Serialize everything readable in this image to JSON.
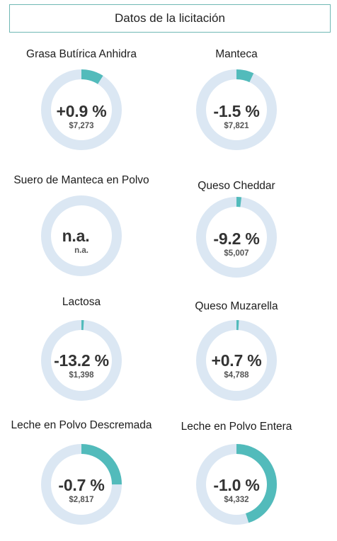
{
  "header": {
    "title": "Datos de la licitación"
  },
  "colors": {
    "track": "#dbe7f3",
    "progress": "#52bbbb",
    "frame": "#6fb8b4"
  },
  "items": [
    {
      "name": "Grasa Butírica Anhidra",
      "change": "+0.9 %",
      "price": "$7,273",
      "progress": 0.09
    },
    {
      "name": "Manteca",
      "change": "-1.5 %",
      "price": "$7,821",
      "progress": 0.07
    },
    {
      "name": "Suero de Manteca en Polvo",
      "change": "n.a.",
      "price": "n.a.",
      "progress": 0
    },
    {
      "name": "Queso Cheddar",
      "change": "-9.2 %",
      "price": "$5,007",
      "progress": 0.02
    },
    {
      "name": "Lactosa",
      "change": "-13.2 %",
      "price": "$1,398",
      "progress": 0.01
    },
    {
      "name": "Queso Muzarella",
      "change": "+0.7 %",
      "price": "$4,788",
      "progress": 0.01
    },
    {
      "name": "Leche en Polvo Descremada",
      "change": "-0.7 %",
      "price": "$2,817",
      "progress": 0.25
    },
    {
      "name": "Leche en Polvo Entera",
      "change": "-1.0 %",
      "price": "$4,332",
      "progress": 0.45
    }
  ]
}
